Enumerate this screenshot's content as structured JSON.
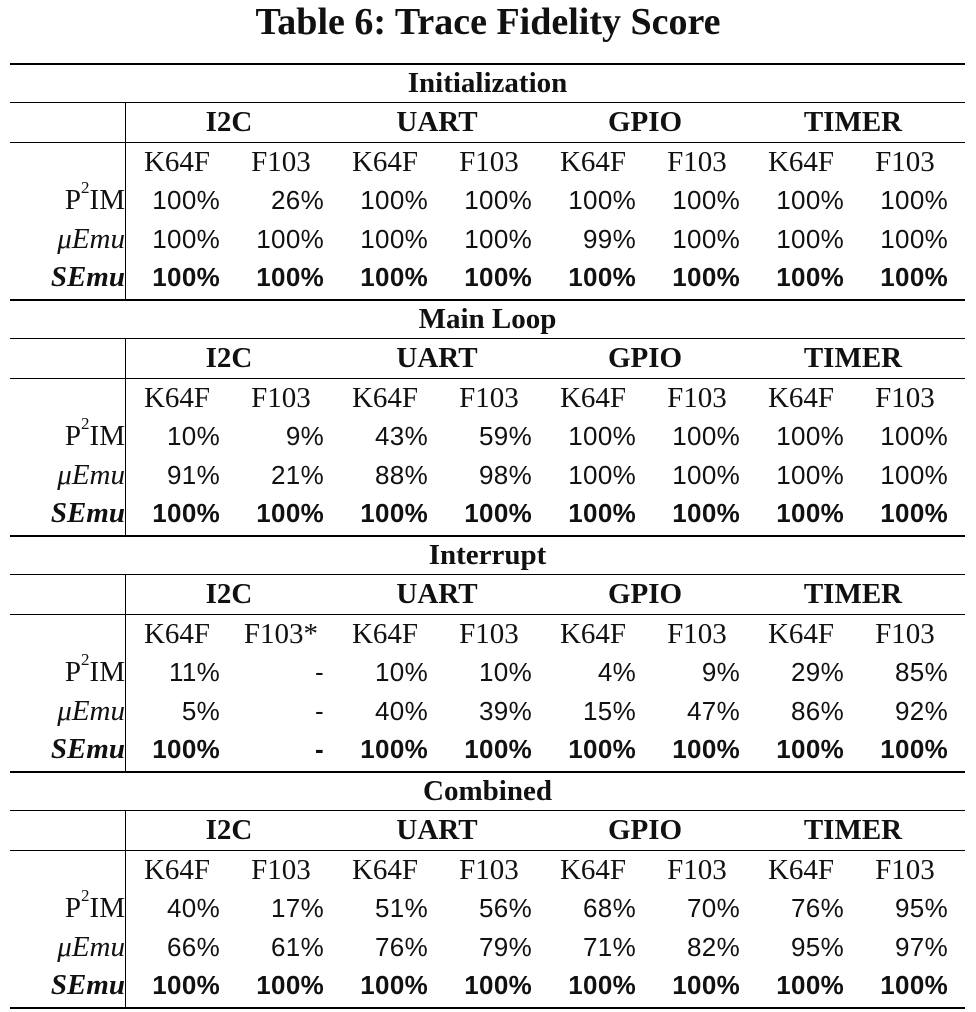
{
  "title": "Table 6: Trace Fidelity Score",
  "peripherals": [
    "I2C",
    "UART",
    "GPIO",
    "TIMER"
  ],
  "rows": [
    {
      "label": "P",
      "sup": "2",
      "suffix": "IM",
      "style": "normal"
    },
    {
      "label": "μEmu",
      "sup": "",
      "suffix": "",
      "style": "emu"
    },
    {
      "label": "SEmu",
      "sup": "",
      "suffix": "",
      "style": "bold"
    }
  ],
  "sections": [
    {
      "name": "Initialization",
      "boards": [
        "K64F",
        "F103",
        "K64F",
        "F103",
        "K64F",
        "F103",
        "K64F",
        "F103"
      ],
      "values": [
        [
          "100%",
          "26%",
          "100%",
          "100%",
          "100%",
          "100%",
          "100%",
          "100%"
        ],
        [
          "100%",
          "100%",
          "100%",
          "100%",
          "99%",
          "100%",
          "100%",
          "100%"
        ],
        [
          "100%",
          "100%",
          "100%",
          "100%",
          "100%",
          "100%",
          "100%",
          "100%"
        ]
      ]
    },
    {
      "name": "Main Loop",
      "boards": [
        "K64F",
        "F103",
        "K64F",
        "F103",
        "K64F",
        "F103",
        "K64F",
        "F103"
      ],
      "values": [
        [
          "10%",
          "9%",
          "43%",
          "59%",
          "100%",
          "100%",
          "100%",
          "100%"
        ],
        [
          "91%",
          "21%",
          "88%",
          "98%",
          "100%",
          "100%",
          "100%",
          "100%"
        ],
        [
          "100%",
          "100%",
          "100%",
          "100%",
          "100%",
          "100%",
          "100%",
          "100%"
        ]
      ]
    },
    {
      "name": "Interrupt",
      "boards": [
        "K64F",
        "F103*",
        "K64F",
        "F103",
        "K64F",
        "F103",
        "K64F",
        "F103"
      ],
      "values": [
        [
          "11%",
          "-",
          "10%",
          "10%",
          "4%",
          "9%",
          "29%",
          "85%"
        ],
        [
          "5%",
          "-",
          "40%",
          "39%",
          "15%",
          "47%",
          "86%",
          "92%"
        ],
        [
          "100%",
          "-",
          "100%",
          "100%",
          "100%",
          "100%",
          "100%",
          "100%"
        ]
      ]
    },
    {
      "name": "Combined",
      "boards": [
        "K64F",
        "F103",
        "K64F",
        "F103",
        "K64F",
        "F103",
        "K64F",
        "F103"
      ],
      "values": [
        [
          "40%",
          "17%",
          "51%",
          "56%",
          "68%",
          "70%",
          "76%",
          "95%"
        ],
        [
          "66%",
          "61%",
          "76%",
          "79%",
          "71%",
          "82%",
          "95%",
          "97%"
        ],
        [
          "100%",
          "100%",
          "100%",
          "100%",
          "100%",
          "100%",
          "100%",
          "100%"
        ]
      ]
    }
  ]
}
